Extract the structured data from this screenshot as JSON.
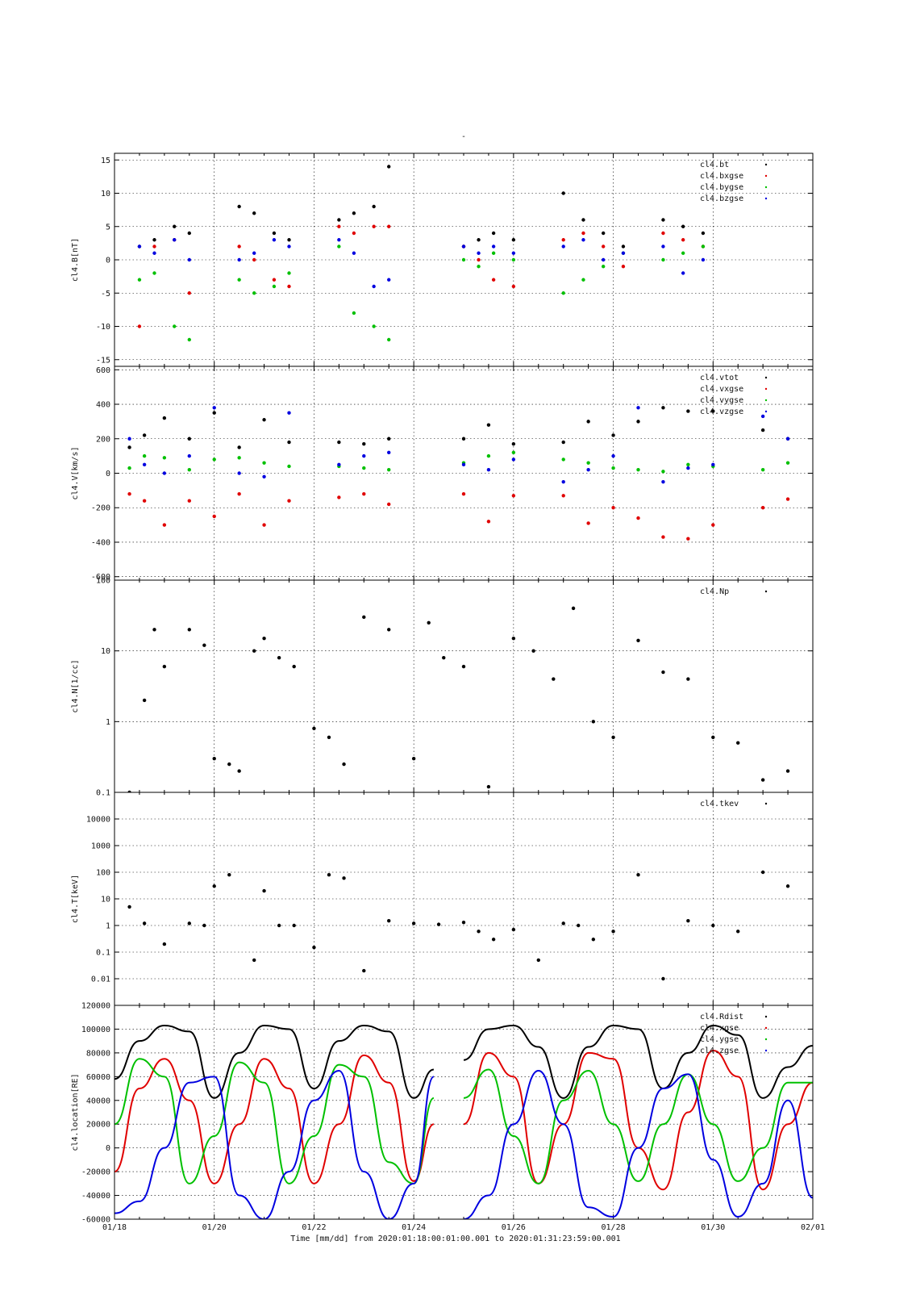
{
  "figure": {
    "title": "-",
    "time_axis": {
      "tick_labels": [
        "01/18",
        "01/20",
        "01/22",
        "01/24",
        "01/26",
        "01/28",
        "01/30",
        "02/01"
      ],
      "xlabel": "Time [mm/dd]  from 2020:01:18:00:01:00.001  to  2020:01:31:23:59:00.001"
    },
    "colors": {
      "black": "#000000",
      "red": "#e00000",
      "green": "#00c000",
      "blue": "#0000e0"
    }
  },
  "chart_data": [
    {
      "type": "scatter",
      "ylabel": "cl4.B[nT]",
      "ylim": [
        -16,
        16
      ],
      "yticks": [
        -15,
        -10,
        -5,
        0,
        5,
        10,
        15
      ],
      "x_unit": "days since 01/18",
      "xlim": [
        0,
        14
      ],
      "grid": true,
      "legend_position": "top-right",
      "series": [
        {
          "name": "cl4.bt",
          "color": "#000000",
          "x": [
            0.5,
            0.8,
            1.2,
            1.5,
            2.5,
            2.8,
            3.2,
            3.5,
            4.5,
            4.8,
            5.2,
            5.5,
            7.0,
            7.3,
            7.6,
            8.0,
            9.0,
            9.4,
            9.8,
            10.2,
            11.0,
            11.4,
            11.8
          ],
          "values": [
            2,
            3,
            5,
            4,
            8,
            7,
            4,
            3,
            6,
            7,
            8,
            14,
            2,
            3,
            4,
            3,
            10,
            6,
            4,
            2,
            6,
            5,
            4
          ]
        },
        {
          "name": "cl4.bxgse",
          "color": "#e00000",
          "x": [
            0.5,
            0.8,
            1.2,
            1.5,
            2.5,
            2.8,
            3.2,
            3.5,
            4.5,
            4.8,
            5.2,
            5.5,
            7.0,
            7.3,
            7.6,
            8.0,
            9.0,
            9.4,
            9.8,
            10.2,
            11.0,
            11.4,
            11.8
          ],
          "values": [
            -10,
            2,
            3,
            -5,
            2,
            0,
            -3,
            -4,
            5,
            4,
            5,
            5,
            2,
            0,
            -3,
            -4,
            3,
            4,
            2,
            -1,
            4,
            3,
            2
          ]
        },
        {
          "name": "cl4.bygse",
          "color": "#00c000",
          "x": [
            0.5,
            0.8,
            1.2,
            1.5,
            2.5,
            2.8,
            3.2,
            3.5,
            4.5,
            4.8,
            5.2,
            5.5,
            7.0,
            7.3,
            7.6,
            8.0,
            9.0,
            9.4,
            9.8,
            10.2,
            11.0,
            11.4,
            11.8
          ],
          "values": [
            -3,
            -2,
            -10,
            -12,
            -3,
            -5,
            -4,
            -2,
            2,
            -8,
            -10,
            -12,
            0,
            -1,
            1,
            0,
            -5,
            -3,
            -1,
            1,
            0,
            1,
            2
          ]
        },
        {
          "name": "cl4.bzgse",
          "color": "#0000e0",
          "x": [
            0.5,
            0.8,
            1.2,
            1.5,
            2.5,
            2.8,
            3.2,
            3.5,
            4.5,
            4.8,
            5.2,
            5.5,
            7.0,
            7.3,
            7.6,
            8.0,
            9.0,
            9.4,
            9.8,
            10.2,
            11.0,
            11.4,
            11.8
          ],
          "values": [
            2,
            1,
            3,
            0,
            0,
            1,
            3,
            2,
            3,
            1,
            -4,
            -3,
            2,
            1,
            2,
            1,
            2,
            3,
            0,
            1,
            2,
            -2,
            0
          ]
        }
      ]
    },
    {
      "type": "scatter",
      "ylabel": "cl4.V[km/s]",
      "ylim": [
        -620,
        620
      ],
      "yticks": [
        -600,
        -400,
        -200,
        0,
        200,
        400,
        600
      ],
      "x_unit": "days since 01/18",
      "xlim": [
        0,
        14
      ],
      "grid": true,
      "legend_position": "top-right",
      "series": [
        {
          "name": "cl4.vtot",
          "color": "#000000",
          "x": [
            0.3,
            0.6,
            1.0,
            1.5,
            2.0,
            2.5,
            3.0,
            3.5,
            4.5,
            5.0,
            5.5,
            7.0,
            7.5,
            8.0,
            9.0,
            9.5,
            10.0,
            10.5,
            11.0,
            11.5,
            12.0,
            13.0,
            13.5
          ],
          "values": [
            150,
            220,
            320,
            200,
            350,
            150,
            310,
            180,
            180,
            170,
            200,
            200,
            280,
            170,
            180,
            300,
            220,
            300,
            380,
            360,
            360,
            250,
            200
          ]
        },
        {
          "name": "cl4.vxgse",
          "color": "#e00000",
          "x": [
            0.3,
            0.6,
            1.0,
            1.5,
            2.0,
            2.5,
            3.0,
            3.5,
            4.5,
            5.0,
            5.5,
            7.0,
            7.5,
            8.0,
            9.0,
            9.5,
            10.0,
            10.5,
            11.0,
            11.5,
            12.0,
            13.0,
            13.5
          ],
          "values": [
            -120,
            -160,
            -300,
            -160,
            -250,
            -120,
            -300,
            -160,
            -140,
            -120,
            -180,
            -120,
            -280,
            -130,
            -130,
            -290,
            -200,
            -260,
            -370,
            -380,
            -300,
            -200,
            -150
          ]
        },
        {
          "name": "cl4.vygse",
          "color": "#00c000",
          "x": [
            0.3,
            0.6,
            1.0,
            1.5,
            2.0,
            2.5,
            3.0,
            3.5,
            4.5,
            5.0,
            5.5,
            7.0,
            7.5,
            8.0,
            9.0,
            9.5,
            10.0,
            10.5,
            11.0,
            11.5,
            12.0,
            13.0,
            13.5
          ],
          "values": [
            30,
            100,
            90,
            20,
            80,
            90,
            60,
            40,
            40,
            30,
            20,
            60,
            100,
            120,
            80,
            60,
            30,
            20,
            10,
            50,
            40,
            20,
            60
          ]
        },
        {
          "name": "cl4.vzgse",
          "color": "#0000e0",
          "x": [
            0.3,
            0.6,
            1.0,
            1.5,
            2.0,
            2.5,
            3.0,
            3.5,
            4.5,
            5.0,
            5.5,
            7.0,
            7.5,
            8.0,
            9.0,
            9.5,
            10.0,
            10.5,
            11.0,
            11.5,
            12.0,
            13.0,
            13.5
          ],
          "values": [
            200,
            50,
            0,
            100,
            380,
            0,
            -20,
            350,
            50,
            100,
            120,
            50,
            20,
            80,
            -50,
            20,
            100,
            380,
            -50,
            30,
            50,
            330,
            200
          ]
        }
      ]
    },
    {
      "type": "scatter",
      "ylabel": "cl4.N[1/cc]",
      "yscale": "log",
      "ylim": [
        0.1,
        100
      ],
      "yticks": [
        0.1,
        1,
        10,
        100
      ],
      "x_unit": "days since 01/18",
      "xlim": [
        0,
        14
      ],
      "grid": true,
      "legend_position": "top-right",
      "series": [
        {
          "name": "cl4.Np",
          "color": "#000000",
          "x": [
            0.3,
            0.6,
            0.8,
            1.0,
            1.5,
            1.8,
            2.0,
            2.3,
            2.5,
            2.8,
            3.0,
            3.3,
            3.6,
            4.0,
            4.3,
            4.6,
            5.0,
            5.5,
            6.0,
            6.3,
            6.6,
            7.0,
            7.5,
            8.0,
            8.4,
            8.8,
            9.2,
            9.6,
            10.0,
            10.5,
            11.0,
            11.5,
            12.0,
            12.5,
            13.0,
            13.5
          ],
          "values": [
            0.1,
            2,
            20,
            6,
            20,
            12,
            0.3,
            0.25,
            0.2,
            10,
            15,
            8,
            6,
            0.8,
            0.6,
            0.25,
            30,
            20,
            0.3,
            25,
            8,
            6,
            0.12,
            15,
            10,
            4,
            40,
            1,
            0.6,
            14,
            5,
            4,
            0.6,
            0.5,
            0.15,
            0.2
          ]
        }
      ]
    },
    {
      "type": "scatter",
      "ylabel": "cl4.T[keV]",
      "yscale": "log",
      "ylim": [
        0.001,
        100000
      ],
      "yticks": [
        0.01,
        0.1,
        1,
        10,
        100,
        1000,
        10000
      ],
      "x_unit": "days since 01/18",
      "xlim": [
        0,
        14
      ],
      "grid": true,
      "legend_position": "top-right",
      "series": [
        {
          "name": "cl4.tkev",
          "color": "#000000",
          "x": [
            0.3,
            0.6,
            1.0,
            1.5,
            1.8,
            2.0,
            2.3,
            2.8,
            3.0,
            3.3,
            3.6,
            4.0,
            4.3,
            4.6,
            5.0,
            5.5,
            6.0,
            6.5,
            7.0,
            7.3,
            7.6,
            8.0,
            8.5,
            9.0,
            9.3,
            9.6,
            10.0,
            10.5,
            11.0,
            11.5,
            12.0,
            12.5,
            13.0,
            13.5
          ],
          "values": [
            5,
            1.2,
            0.2,
            1.2,
            1.0,
            30,
            80,
            0.05,
            20,
            1.0,
            1.0,
            0.15,
            80,
            60,
            0.02,
            1.5,
            1.2,
            1.1,
            1.3,
            0.6,
            0.3,
            0.7,
            0.05,
            1.2,
            1.0,
            0.3,
            0.6,
            80,
            0.01,
            1.5,
            1.0,
            0.6,
            100,
            30
          ]
        }
      ]
    },
    {
      "type": "line",
      "ylabel": "cl4.location[RE]",
      "ylim": [
        -60000,
        120000
      ],
      "yticks": [
        -60000,
        -40000,
        -20000,
        0,
        20000,
        40000,
        60000,
        80000,
        100000,
        120000
      ],
      "x_unit": "days since 01/18",
      "xlim": [
        0,
        14
      ],
      "data_gap": [
        6.4,
        7.0
      ],
      "grid": true,
      "legend_position": "top-right",
      "series": [
        {
          "name": "cl4.Rdist",
          "color": "#000000",
          "x": [
            0,
            0.5,
            1,
            1.5,
            2,
            2.5,
            3,
            3.5,
            4,
            4.5,
            5,
            5.5,
            6,
            6.4,
            7.0,
            7.5,
            8,
            8.5,
            9,
            9.5,
            10,
            10.5,
            11,
            11.5,
            12,
            12.5,
            13,
            13.5,
            14
          ],
          "values": [
            58000,
            90000,
            103000,
            98000,
            42000,
            80000,
            103000,
            100000,
            50000,
            90000,
            103000,
            98000,
            42000,
            66000,
            74000,
            100000,
            103000,
            85000,
            42000,
            85000,
            103000,
            100000,
            50000,
            80000,
            103000,
            95000,
            42000,
            68000,
            86000
          ]
        },
        {
          "name": "cl4.xgse",
          "color": "#e00000",
          "x": [
            0,
            0.5,
            1,
            1.5,
            2,
            2.5,
            3,
            3.5,
            4,
            4.5,
            5,
            5.5,
            6,
            6.4,
            7.0,
            7.5,
            8,
            8.5,
            9,
            9.5,
            10,
            10.5,
            11,
            11.5,
            12,
            12.5,
            13,
            13.5,
            14
          ],
          "values": [
            -20000,
            50000,
            75000,
            40000,
            -30000,
            20000,
            75000,
            50000,
            -30000,
            20000,
            78000,
            55000,
            -28000,
            20000,
            20000,
            80000,
            60000,
            -30000,
            20000,
            80000,
            75000,
            0,
            -35000,
            30000,
            82000,
            60000,
            -35000,
            20000,
            55000
          ]
        },
        {
          "name": "cl4.ygse",
          "color": "#00c000",
          "x": [
            0,
            0.5,
            1,
            1.5,
            2,
            2.5,
            3,
            3.5,
            4,
            4.5,
            5,
            5.5,
            6,
            6.4,
            7.0,
            7.5,
            8,
            8.5,
            9,
            9.5,
            10,
            10.5,
            11,
            11.5,
            12,
            12.5,
            13,
            13.5,
            14
          ],
          "values": [
            20000,
            75000,
            60000,
            -30000,
            10000,
            72000,
            55000,
            -30000,
            10000,
            70000,
            60000,
            -12000,
            -30000,
            42000,
            42000,
            66000,
            10000,
            -30000,
            40000,
            65000,
            20000,
            -28000,
            20000,
            62000,
            20000,
            -28000,
            0,
            55000,
            55000
          ]
        },
        {
          "name": "cl4.zgse",
          "color": "#0000e0",
          "x": [
            0,
            0.5,
            1,
            1.5,
            2,
            2.5,
            3,
            3.5,
            4,
            4.5,
            5,
            5.5,
            6,
            6.4,
            7.0,
            7.5,
            8,
            8.5,
            9,
            9.5,
            10,
            10.5,
            11,
            11.5,
            12,
            12.5,
            13,
            13.5,
            14
          ],
          "values": [
            -55000,
            -45000,
            0,
            55000,
            60000,
            -40000,
            -60000,
            -20000,
            40000,
            65000,
            -20000,
            -60000,
            -30000,
            60000,
            -60000,
            -40000,
            20000,
            65000,
            20000,
            -50000,
            -58000,
            0,
            50000,
            62000,
            -10000,
            -58000,
            -30000,
            40000,
            -42000
          ]
        }
      ]
    }
  ]
}
